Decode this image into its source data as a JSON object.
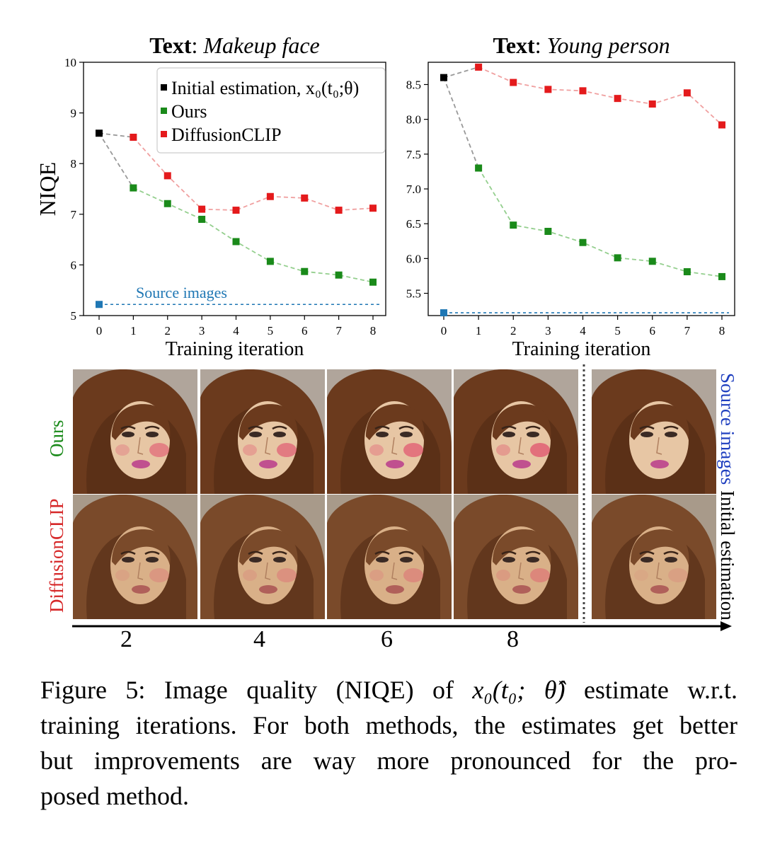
{
  "chart_data": [
    {
      "type": "line",
      "title_bold": "Text",
      "title_rest": ": Makeup face",
      "ylabel": "NIQE",
      "xlabel": "Training iteration",
      "x": [
        0,
        1,
        2,
        3,
        4,
        5,
        6,
        7,
        8
      ],
      "ylim": [
        5,
        10
      ],
      "yticks": [
        "10",
        "9",
        "8",
        "7",
        "6",
        "5"
      ],
      "ytick_values": [
        10,
        9,
        8,
        7,
        6,
        5
      ],
      "xticks": [
        "0",
        "1",
        "2",
        "3",
        "4",
        "5",
        "6",
        "7",
        "8"
      ],
      "legend": [
        "Initial estimation, x₀(t₀;θ)",
        "Ours",
        "DiffusionCLIP"
      ],
      "legend_position": "top-right",
      "initial": {
        "x": 0,
        "y": 8.6,
        "color": "#000000"
      },
      "series": [
        {
          "name": "Ours",
          "color": "#1a8a1a",
          "values": [
            8.6,
            7.52,
            7.21,
            6.9,
            6.46,
            6.07,
            5.87,
            5.8,
            5.66
          ]
        },
        {
          "name": "DiffusionCLIP",
          "color": "#e41a1c",
          "values": [
            8.6,
            8.52,
            7.76,
            7.1,
            7.08,
            7.35,
            7.32,
            7.08,
            7.12
          ]
        }
      ],
      "source": {
        "label": "Source images",
        "y": 5.22,
        "color": "#1f77b4"
      }
    },
    {
      "type": "line",
      "title_bold": "Text",
      "title_rest": ": Young person",
      "ylabel": "",
      "xlabel": "Training iteration",
      "x": [
        0,
        1,
        2,
        3,
        4,
        5,
        6,
        7,
        8
      ],
      "ylim": [
        5.18,
        8.82
      ],
      "yticks": [
        "8.5",
        "8.0",
        "7.5",
        "7.0",
        "6.5",
        "6.0",
        "5.5"
      ],
      "ytick_values": [
        8.5,
        8.0,
        7.5,
        7.0,
        6.5,
        6.0,
        5.5
      ],
      "xticks": [
        "0",
        "1",
        "2",
        "3",
        "4",
        "5",
        "6",
        "7",
        "8"
      ],
      "initial": {
        "x": 0,
        "y": 8.6,
        "color": "#000000"
      },
      "series": [
        {
          "name": "Ours",
          "color": "#1a8a1a",
          "values": [
            8.6,
            7.3,
            6.48,
            6.39,
            6.23,
            6.01,
            5.96,
            5.81,
            5.74
          ]
        },
        {
          "name": "DiffusionCLIP",
          "color": "#e41a1c",
          "values": [
            8.6,
            8.75,
            8.53,
            8.43,
            8.41,
            8.3,
            8.22,
            8.38,
            7.92
          ]
        }
      ],
      "source": {
        "label": "",
        "y": 5.22,
        "color": "#1f77b4"
      }
    }
  ],
  "faces": {
    "row_labels": {
      "ours": "Ours",
      "diffusionclip": "DiffusionCLIP"
    },
    "row_label_colors": {
      "ours": "#1a8a1a",
      "diffusionclip": "#d62728"
    },
    "side_label_source": "Source images",
    "side_label_initial": "Initial estimation",
    "side_colors": {
      "source": "#1f3fbf",
      "initial": "#000000"
    },
    "axis_ticks": [
      "2",
      "4",
      "6",
      "8"
    ],
    "ours_blush_strength": [
      0.55,
      0.6,
      0.65,
      0.7
    ],
    "diffclip_blush_strength": [
      0.25,
      0.3,
      0.35,
      0.4
    ]
  },
  "caption": {
    "line1_prefix": "Figure 5: Image quality (NIQE) of ",
    "math_expr": "x₀(t₀; θ̂)",
    "line1_suffix": " estimate w.r.t.",
    "line2": "training iterations. For both methods, the estimates get better",
    "line3": "but improvements are way more pronounced for the pro-",
    "line4": "posed method."
  }
}
